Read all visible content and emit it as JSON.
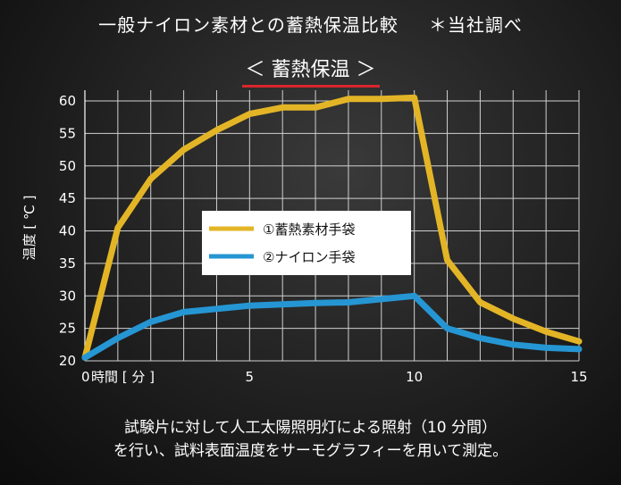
{
  "header": {
    "title": "一般ナイロン素材との蓄熱保温比較",
    "note": "＊当社調べ",
    "subtitle": "＜ 蓄熱保温 ＞"
  },
  "chart_data": {
    "type": "line",
    "title": "＜ 蓄熱保温 ＞",
    "xlabel": "時間 [ 分 ]",
    "ylabel": "温度 [ ℃ ]",
    "xlim": [
      0,
      15
    ],
    "ylim": [
      20,
      62
    ],
    "x_ticks": [
      0,
      5,
      10,
      15
    ],
    "x_tick_labels": [
      "0",
      "5",
      "10",
      "15"
    ],
    "y_ticks": [
      20,
      25,
      30,
      35,
      40,
      45,
      50,
      55,
      60
    ],
    "y_tick_labels": [
      "20",
      "25",
      "30",
      "35",
      "40",
      "45",
      "50",
      "55",
      "60"
    ],
    "grid": true,
    "legend_position": "center",
    "series": [
      {
        "name": "①蓄熱素材手袋",
        "color": "#e3b526",
        "x": [
          0,
          1,
          2,
          3,
          4,
          5,
          6,
          7,
          8,
          9,
          10,
          11,
          12,
          13,
          14,
          15
        ],
        "y": [
          20.5,
          40.5,
          48,
          52.5,
          55.5,
          58,
          59,
          59,
          60.3,
          60.3,
          60.5,
          35.5,
          29,
          26.5,
          24.5,
          23
        ]
      },
      {
        "name": "②ナイロン手袋",
        "color": "#2596d3",
        "x": [
          0,
          1,
          2,
          3,
          4,
          5,
          6,
          7,
          8,
          9,
          10,
          11,
          12,
          13,
          14,
          15
        ],
        "y": [
          20.5,
          23.5,
          26,
          27.5,
          28,
          28.5,
          28.7,
          28.9,
          29,
          29.5,
          30,
          25,
          23.5,
          22.5,
          22,
          21.8
        ]
      }
    ]
  },
  "caption": {
    "line1": "試験片に対して人工太陽照明灯による照射（10 分間）",
    "line2": "を行い、試料表面温度をサーモグラフィーを用いて測定。"
  }
}
